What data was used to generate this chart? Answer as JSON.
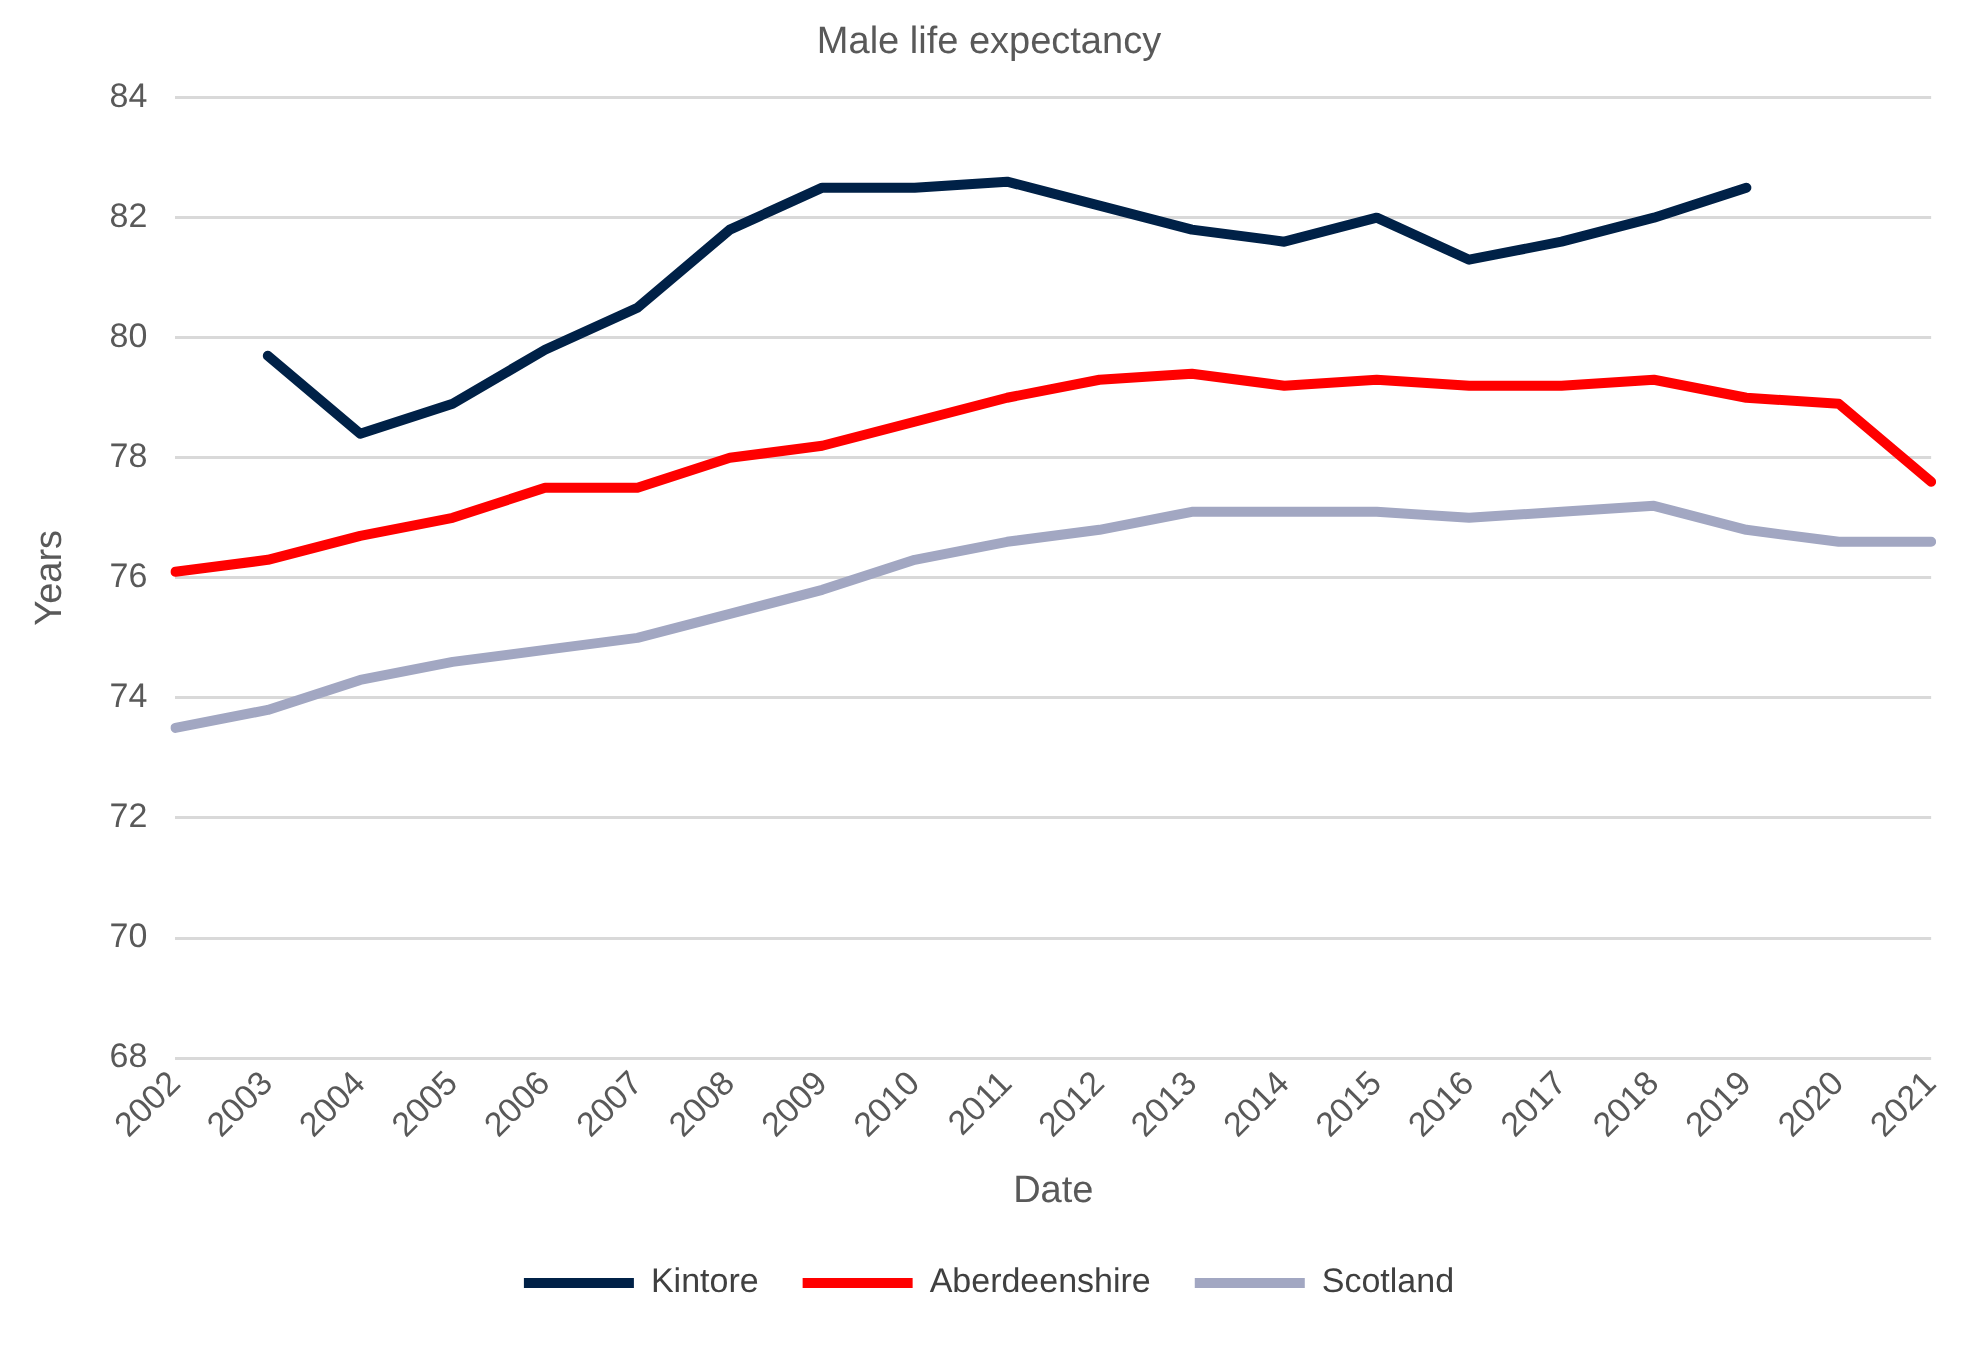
{
  "chart_data": {
    "type": "line",
    "title": "Male life expectancy",
    "xlabel": "Date",
    "ylabel": "Years",
    "categories": [
      "2002",
      "2003",
      "2004",
      "2005",
      "2006",
      "2007",
      "2008",
      "2009",
      "2010",
      "2011",
      "2012",
      "2013",
      "2014",
      "2015",
      "2016",
      "2017",
      "2018",
      "2019",
      "2020",
      "2021"
    ],
    "series": [
      {
        "name": "Kintore",
        "color": "#002147",
        "values": [
          null,
          79.7,
          78.4,
          78.9,
          79.8,
          80.5,
          81.8,
          82.5,
          82.5,
          82.6,
          82.2,
          81.8,
          81.6,
          82.0,
          81.3,
          81.6,
          82.0,
          82.5,
          null,
          null
        ]
      },
      {
        "name": "Aberdeenshire",
        "color": "#ff0000",
        "values": [
          76.1,
          76.3,
          76.7,
          77.0,
          77.5,
          77.5,
          78.0,
          78.2,
          78.6,
          79.0,
          79.3,
          79.4,
          79.2,
          79.3,
          79.2,
          79.2,
          79.3,
          79.0,
          78.9,
          77.6
        ]
      },
      {
        "name": "Scotland",
        "color": "#a2a7c2",
        "values": [
          73.5,
          73.8,
          74.3,
          74.6,
          74.8,
          75.0,
          75.4,
          75.8,
          76.3,
          76.6,
          76.8,
          77.1,
          77.1,
          77.1,
          77.0,
          77.1,
          77.2,
          76.8,
          76.6,
          76.6
        ]
      }
    ],
    "ylim": [
      68,
      84
    ],
    "yticks": [
      68,
      70,
      72,
      74,
      76,
      78,
      80,
      82,
      84
    ],
    "grid": "y",
    "legend": "bottom",
    "marker": "none",
    "line_style": "solid"
  }
}
